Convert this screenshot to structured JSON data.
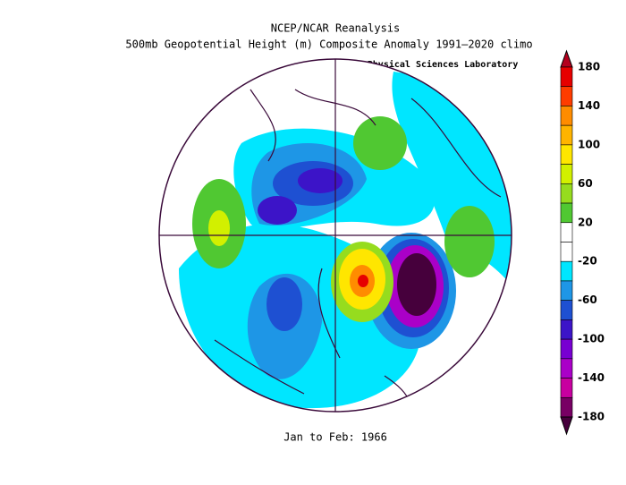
{
  "header": {
    "title": "NCEP/NCAR Reanalysis",
    "subtitle": "500mb Geopotential Height (m) Composite Anomaly 1991–2020 climo",
    "credit": "NOAA Physical Sciences Laboratory"
  },
  "footer": "Jan to Feb: 1966",
  "colorbar": {
    "ticks": [
      180,
      140,
      100,
      60,
      20,
      -20,
      -60,
      -100,
      -140,
      -180
    ],
    "colors": [
      "#b4001e",
      "#e60000",
      "#ff3c00",
      "#ff8c00",
      "#ffb400",
      "#ffe600",
      "#d2f000",
      "#96dc1e",
      "#50c832",
      "#ffffff",
      "#ffffff",
      "#00e6ff",
      "#1e96e6",
      "#1e50d2",
      "#3c14c8",
      "#7800d2",
      "#aa00c8",
      "#c800a0",
      "#780064",
      "#46003c"
    ]
  }
}
